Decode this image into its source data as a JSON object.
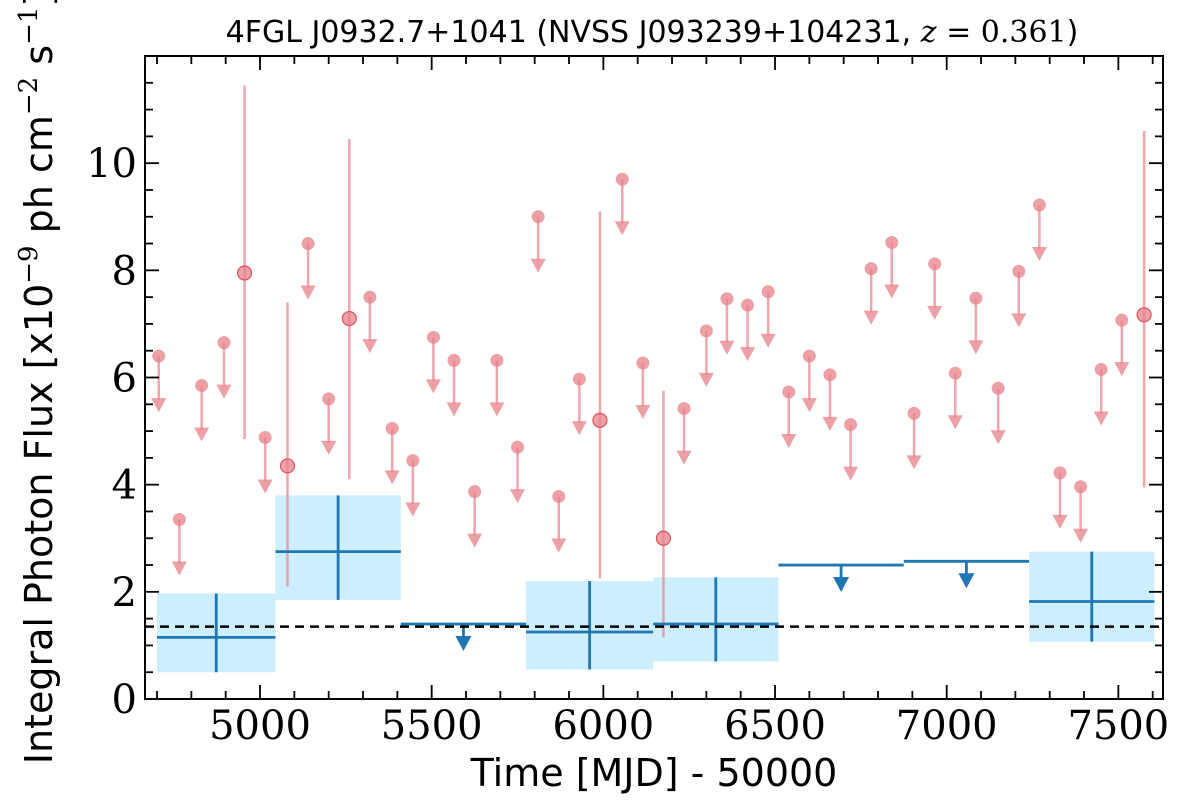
{
  "chart_data": {
    "type": "scatter",
    "title": "4FGL J0932.7+1041 (NVSS J093239+104231, z = 0.361)",
    "title_parts": {
      "prefix": "4FGL J0932.7+1041 (NVSS J093239+104231, ",
      "z_symbol": "z",
      "z_eq": " = ",
      "z_value": "0.361",
      "suffix": ")"
    },
    "xlabel": "Time [MJD] - 50000",
    "ylabel": {
      "main": "Integral Photon Flux [x10",
      "exp1": "−9",
      "mid": " ph cm",
      "exp2": "−2",
      "mid2": " s",
      "exp3": "−1",
      "end": "]"
    },
    "xlim": [
      4665,
      7630
    ],
    "ylim": [
      0,
      12
    ],
    "xticks": [
      5000,
      5500,
      6000,
      6500,
      7000,
      7500
    ],
    "yticks": [
      0,
      2,
      4,
      6,
      8,
      10
    ],
    "grid": false,
    "baseline_flux": 1.35,
    "colors": {
      "short_bins": "#e8808a",
      "long_bins": "#1f77b4",
      "long_bins_band": "#cdeefd",
      "baseline": "#000000"
    },
    "short_bins": [
      {
        "x": 4705,
        "y": 6.4,
        "ul": true
      },
      {
        "x": 4765,
        "y": 3.35,
        "ul": true
      },
      {
        "x": 4830,
        "y": 5.85,
        "ul": true
      },
      {
        "x": 4895,
        "y": 6.65,
        "ul": true
      },
      {
        "x": 4955,
        "y": 7.95,
        "ul": false,
        "lo": 4.85,
        "hi": 11.45
      },
      {
        "x": 5015,
        "y": 4.88,
        "ul": true
      },
      {
        "x": 5080,
        "y": 4.35,
        "ul": false,
        "lo": 2.1,
        "hi": 7.4
      },
      {
        "x": 5140,
        "y": 8.5,
        "ul": true
      },
      {
        "x": 5200,
        "y": 5.6,
        "ul": true
      },
      {
        "x": 5260,
        "y": 7.1,
        "ul": false,
        "lo": 4.1,
        "hi": 10.45
      },
      {
        "x": 5320,
        "y": 7.5,
        "ul": true
      },
      {
        "x": 5385,
        "y": 5.05,
        "ul": true
      },
      {
        "x": 5445,
        "y": 4.45,
        "ul": true
      },
      {
        "x": 5505,
        "y": 6.75,
        "ul": true
      },
      {
        "x": 5565,
        "y": 6.32,
        "ul": true
      },
      {
        "x": 5625,
        "y": 3.87,
        "ul": true
      },
      {
        "x": 5690,
        "y": 6.32,
        "ul": true
      },
      {
        "x": 5750,
        "y": 4.7,
        "ul": true
      },
      {
        "x": 5810,
        "y": 9.0,
        "ul": true
      },
      {
        "x": 5870,
        "y": 3.78,
        "ul": true
      },
      {
        "x": 5930,
        "y": 5.97,
        "ul": true
      },
      {
        "x": 5990,
        "y": 5.2,
        "ul": false,
        "lo": 2.25,
        "hi": 9.1
      },
      {
        "x": 6055,
        "y": 9.7,
        "ul": true
      },
      {
        "x": 6115,
        "y": 6.27,
        "ul": true
      },
      {
        "x": 6175,
        "y": 3.0,
        "ul": false,
        "lo": 1.15,
        "hi": 5.75
      },
      {
        "x": 6235,
        "y": 5.42,
        "ul": true
      },
      {
        "x": 6300,
        "y": 6.87,
        "ul": true
      },
      {
        "x": 6360,
        "y": 7.47,
        "ul": true
      },
      {
        "x": 6420,
        "y": 7.35,
        "ul": true
      },
      {
        "x": 6480,
        "y": 7.6,
        "ul": true
      },
      {
        "x": 6540,
        "y": 5.73,
        "ul": true
      },
      {
        "x": 6600,
        "y": 6.4,
        "ul": true
      },
      {
        "x": 6660,
        "y": 6.05,
        "ul": true
      },
      {
        "x": 6720,
        "y": 5.12,
        "ul": true
      },
      {
        "x": 6780,
        "y": 8.03,
        "ul": true
      },
      {
        "x": 6840,
        "y": 8.52,
        "ul": true
      },
      {
        "x": 6905,
        "y": 5.33,
        "ul": true
      },
      {
        "x": 6965,
        "y": 8.12,
        "ul": true
      },
      {
        "x": 7025,
        "y": 6.08,
        "ul": true
      },
      {
        "x": 7085,
        "y": 7.48,
        "ul": true
      },
      {
        "x": 7150,
        "y": 5.8,
        "ul": true
      },
      {
        "x": 7210,
        "y": 7.98,
        "ul": true
      },
      {
        "x": 7270,
        "y": 9.22,
        "ul": true
      },
      {
        "x": 7330,
        "y": 4.22,
        "ul": true
      },
      {
        "x": 7390,
        "y": 3.96,
        "ul": true
      },
      {
        "x": 7450,
        "y": 6.15,
        "ul": true
      },
      {
        "x": 7510,
        "y": 7.07,
        "ul": true
      },
      {
        "x": 7575,
        "y": 7.17,
        "ul": false,
        "lo": 3.95,
        "hi": 10.6
      }
    ],
    "long_bins": [
      {
        "x0": 4700,
        "x1": 5045,
        "y": 1.15,
        "lo": 0.5,
        "hi": 1.97,
        "ul": false
      },
      {
        "x0": 5045,
        "x1": 5410,
        "y": 2.75,
        "lo": 1.85,
        "hi": 3.8,
        "ul": false
      },
      {
        "x0": 5410,
        "x1": 5775,
        "y": 1.4,
        "ul": true
      },
      {
        "x0": 5775,
        "x1": 6145,
        "y": 1.25,
        "lo": 0.55,
        "hi": 2.2,
        "ul": false
      },
      {
        "x0": 6145,
        "x1": 6510,
        "y": 1.4,
        "lo": 0.7,
        "hi": 2.27,
        "ul": false
      },
      {
        "x0": 6510,
        "x1": 6875,
        "y": 2.5,
        "ul": true
      },
      {
        "x0": 6875,
        "x1": 7240,
        "y": 2.57,
        "ul": true
      },
      {
        "x0": 7240,
        "x1": 7605,
        "y": 1.82,
        "lo": 1.07,
        "hi": 2.75,
        "ul": false
      }
    ]
  }
}
